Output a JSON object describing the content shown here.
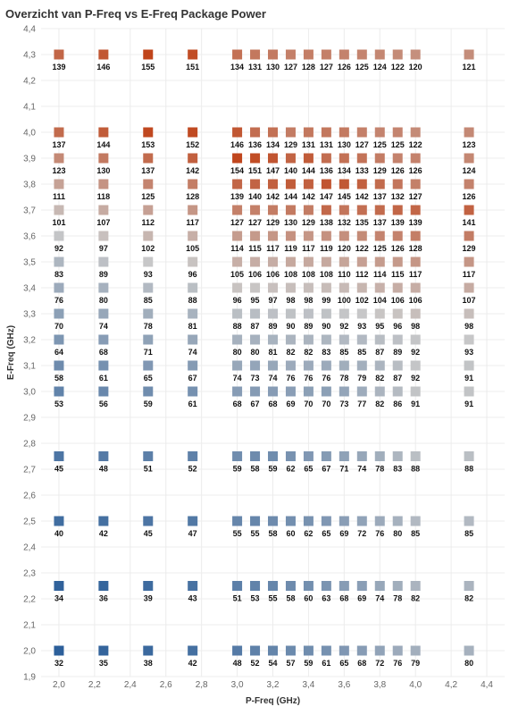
{
  "chart_data": {
    "type": "heatmap",
    "title": "Overzicht van P-Freq vs E-Freq Package Power",
    "xlabel": "P-Freq (GHz)",
    "ylabel": "E-Freq (GHz)",
    "xlim": [
      1.9,
      4.5
    ],
    "ylim": [
      1.9,
      4.4
    ],
    "x_ticks": [
      "2,0",
      "2,2",
      "2,4",
      "2,6",
      "2,8",
      "3,0",
      "3,2",
      "3,4",
      "3,6",
      "3,8",
      "4,0",
      "4,2",
      "4,4"
    ],
    "y_ticks": [
      "1,9",
      "2,0",
      "2,1",
      "2,2",
      "2,3",
      "2,4",
      "2,5",
      "2,6",
      "2,7",
      "2,8",
      "2,9",
      "3,0",
      "3,1",
      "3,2",
      "3,3",
      "3,4",
      "3,5",
      "3,6",
      "3,7",
      "3,8",
      "3,9",
      "4,0",
      "4,1",
      "4,2",
      "4,3",
      "4,4"
    ],
    "grid": true,
    "color_scale": {
      "low": "#2c5f9a",
      "mid": "#c8c8c8",
      "high": "#c0441a",
      "domain": [
        32,
        155
      ]
    },
    "x": [
      2.0,
      2.25,
      2.5,
      2.75,
      3.0,
      3.1,
      3.2,
      3.3,
      3.4,
      3.5,
      3.6,
      3.7,
      3.8,
      3.9,
      4.0,
      4.3
    ],
    "y": [
      4.3,
      4.0,
      3.9,
      3.8,
      3.7,
      3.6,
      3.5,
      3.4,
      3.3,
      3.2,
      3.1,
      3.0,
      2.75,
      2.5,
      2.25,
      2.0
    ],
    "values": [
      [
        139,
        146,
        155,
        151,
        134,
        131,
        130,
        127,
        128,
        127,
        126,
        125,
        124,
        122,
        120,
        121
      ],
      [
        137,
        144,
        153,
        152,
        146,
        136,
        134,
        129,
        131,
        131,
        130,
        127,
        125,
        125,
        122,
        123
      ],
      [
        123,
        130,
        137,
        142,
        154,
        151,
        147,
        140,
        144,
        136,
        134,
        133,
        129,
        126,
        126,
        124
      ],
      [
        111,
        118,
        125,
        128,
        139,
        140,
        142,
        144,
        142,
        147,
        145,
        142,
        137,
        132,
        127,
        126
      ],
      [
        101,
        107,
        112,
        117,
        127,
        127,
        129,
        130,
        129,
        138,
        132,
        135,
        137,
        139,
        139,
        141
      ],
      [
        92,
        97,
        102,
        105,
        114,
        115,
        117,
        119,
        117,
        119,
        120,
        122,
        125,
        126,
        128,
        129
      ],
      [
        83,
        89,
        93,
        96,
        105,
        106,
        106,
        108,
        108,
        108,
        110,
        112,
        114,
        115,
        117,
        117
      ],
      [
        76,
        80,
        85,
        88,
        96,
        95,
        97,
        98,
        98,
        99,
        100,
        102,
        104,
        106,
        106,
        107
      ],
      [
        70,
        74,
        78,
        81,
        88,
        87,
        89,
        90,
        89,
        90,
        92,
        93,
        95,
        96,
        98,
        98
      ],
      [
        64,
        68,
        71,
        74,
        80,
        80,
        81,
        82,
        82,
        83,
        85,
        85,
        87,
        89,
        92,
        93
      ],
      [
        58,
        61,
        65,
        67,
        74,
        73,
        74,
        76,
        76,
        76,
        78,
        79,
        82,
        87,
        92,
        91
      ],
      [
        53,
        56,
        59,
        61,
        68,
        67,
        68,
        69,
        70,
        70,
        73,
        77,
        82,
        86,
        91,
        91
      ],
      [
        45,
        48,
        51,
        52,
        59,
        58,
        59,
        62,
        65,
        67,
        71,
        74,
        78,
        83,
        88,
        88
      ],
      [
        40,
        42,
        45,
        47,
        55,
        55,
        58,
        60,
        62,
        65,
        69,
        72,
        76,
        80,
        85,
        85
      ],
      [
        34,
        36,
        39,
        43,
        51,
        53,
        55,
        58,
        60,
        63,
        68,
        69,
        74,
        78,
        82,
        82
      ],
      [
        32,
        35,
        38,
        42,
        48,
        52,
        54,
        57,
        59,
        61,
        65,
        68,
        72,
        76,
        79,
        80
      ]
    ]
  }
}
